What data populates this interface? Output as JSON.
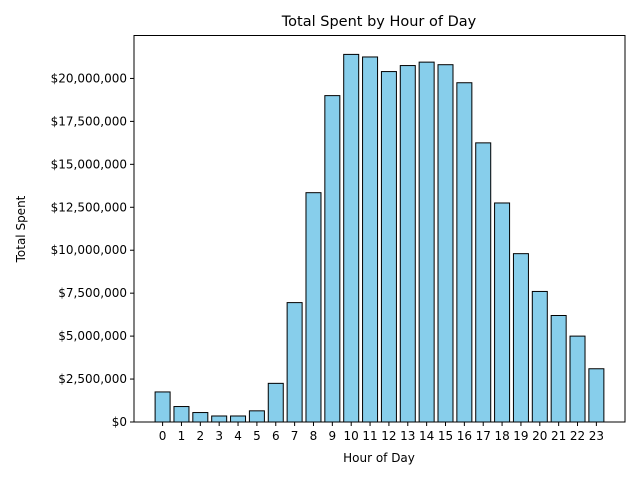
{
  "chart_data": {
    "type": "bar",
    "title": "Total Spent by Hour of Day",
    "xlabel": "Hour of Day",
    "ylabel": "Total Spent",
    "categories": [
      "0",
      "1",
      "2",
      "3",
      "4",
      "5",
      "6",
      "7",
      "8",
      "9",
      "10",
      "11",
      "12",
      "13",
      "14",
      "15",
      "16",
      "17",
      "18",
      "19",
      "20",
      "21",
      "22",
      "23"
    ],
    "values": [
      1750000,
      900000,
      550000,
      350000,
      350000,
      650000,
      2250000,
      6950000,
      13350000,
      19000000,
      21400000,
      21250000,
      20400000,
      20750000,
      20950000,
      20800000,
      19750000,
      16250000,
      12750000,
      9800000,
      7600000,
      6200000,
      5000000,
      3100000
    ],
    "ylim": [
      0,
      22500000
    ],
    "yticks": [
      0,
      2500000,
      5000000,
      7500000,
      10000000,
      12500000,
      15000000,
      17500000,
      20000000
    ],
    "ytick_labels": [
      "$0",
      "$2,500,000",
      "$5,000,000",
      "$7,500,000",
      "$10,000,000",
      "$12,500,000",
      "$15,000,000",
      "$17,500,000",
      "$20,000,000"
    ],
    "bar_color": "#87ceeb",
    "edge_color": "#000000",
    "grid": false,
    "legend": "none"
  }
}
